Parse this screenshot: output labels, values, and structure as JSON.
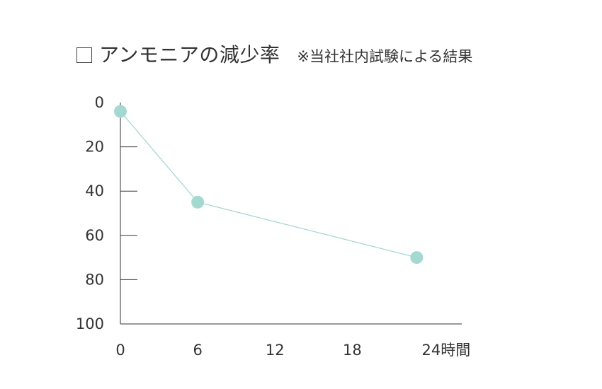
{
  "chart_data": {
    "type": "line",
    "title": "アンモニアの減少率",
    "subtitle": "※当社社内試験による結果",
    "xlabel": "",
    "ylabel": "",
    "x_unit": "時間",
    "x_ticks": [
      0,
      6,
      12,
      18,
      24
    ],
    "y_ticks": [
      0,
      20,
      40,
      60,
      80,
      100
    ],
    "xlim": [
      0,
      26.5
    ],
    "ylim": [
      0,
      100
    ],
    "y_inverted": true,
    "grid": false,
    "series": [
      {
        "x": [
          0,
          6,
          23
        ],
        "y": [
          4,
          45,
          70
        ]
      }
    ],
    "colors": {
      "line": "#9fd6cf",
      "marker": "#a3d9d1",
      "axis": "#333333"
    }
  }
}
